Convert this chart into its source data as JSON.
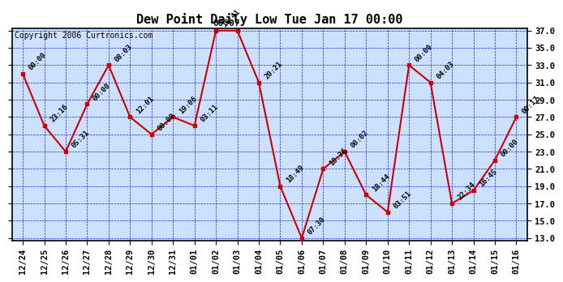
{
  "title": "Dew Point Daily Low Tue Jan 17 00:00",
  "copyright": "Copyright 2006 Curtronics.com",
  "peak_label": "00:07",
  "x_labels": [
    "12/24",
    "12/25",
    "12/26",
    "12/27",
    "12/28",
    "12/29",
    "12/30",
    "12/31",
    "01/01",
    "01/02",
    "01/03",
    "01/04",
    "01/05",
    "01/06",
    "01/07",
    "01/08",
    "01/09",
    "01/10",
    "01/11",
    "01/12",
    "01/13",
    "01/14",
    "01/15",
    "01/16"
  ],
  "y_values": [
    32,
    26,
    23,
    28.5,
    33,
    27,
    25,
    27,
    26,
    37,
    37,
    31,
    19,
    13,
    21,
    23,
    18,
    16,
    33,
    31,
    17,
    18.5,
    22,
    27
  ],
  "point_labels": [
    "00:00",
    "23:16",
    "05:31",
    "00:00",
    "08:03",
    "12:01",
    "00:00",
    "19:06",
    "03:11",
    "18:41",
    "",
    "20:21",
    "18:49",
    "07:30",
    "18:36",
    "00:02",
    "18:44",
    "03:51",
    "00:00",
    "04:03",
    "22:34",
    "16:45",
    "00:00",
    "00:17"
  ],
  "ylim_min": 13.0,
  "ylim_max": 37.0,
  "yticks": [
    13.0,
    15.0,
    17.0,
    19.0,
    21.0,
    23.0,
    25.0,
    27.0,
    29.0,
    31.0,
    33.0,
    35.0,
    37.0
  ],
  "line_color": "#cc0000",
  "marker_color": "#cc0000",
  "bg_color": "#cce0ff",
  "grid_color": "#0000cc",
  "border_color": "#000000",
  "title_fontsize": 11,
  "label_fontsize": 6.5,
  "tick_fontsize": 7.5,
  "copyright_fontsize": 7
}
